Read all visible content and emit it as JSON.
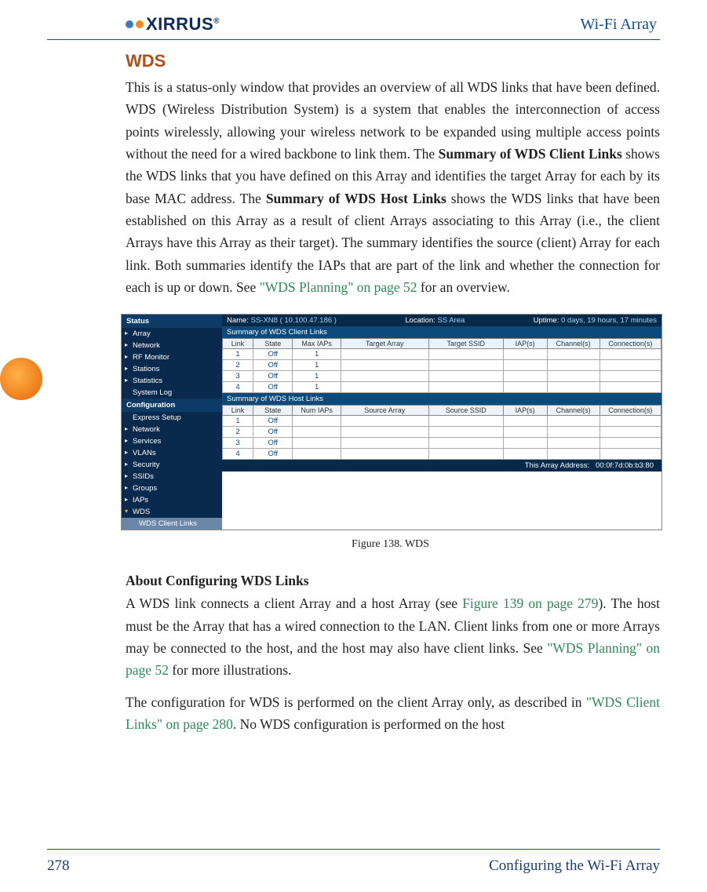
{
  "header": {
    "logo_text": "XIRRUS",
    "right_text": "Wi-Fi Array",
    "logo_dot1_color": "#3a7bbd",
    "logo_dot2_color": "#f08a1d"
  },
  "side_tab_color": "#ee7b1a",
  "section": {
    "title": "WDS",
    "para1_pre": "This is a status-only window that provides an overview of all WDS links that have been defined. WDS (Wireless Distribution System) is a system that enables the interconnection of access points wirelessly, allowing your wireless network to be expanded using multiple access points without the need for a wired backbone to link them. The ",
    "para1_bold1": "Summary of WDS Client Links",
    "para1_mid1": " shows the WDS links that you have defined on this Array and identifies the target Array for each by its base MAC address. The ",
    "para1_bold2": "Summary of WDS Host Links",
    "para1_mid2": " shows the WDS links that have been established on this Array as a result of client Arrays associating to this Array (i.e., the client Arrays have this Array as their target). The summary identifies the source (client) Array for each link. Both summaries identify the IAPs that are part of the link and whether the connection for each is up or down. See ",
    "para1_link": "\"WDS Planning\" on page 52",
    "para1_tail": " for an overview."
  },
  "figure": {
    "nav": {
      "status_head": "Status",
      "items1": [
        "Array",
        "Network",
        "RF Monitor",
        "Stations",
        "Statistics",
        "System Log"
      ],
      "config_head": "Configuration",
      "items2": [
        "Express Setup",
        "Network",
        "Services",
        "VLANs",
        "Security",
        "SSIDs",
        "Groups",
        "IAPs",
        "WDS",
        "WDS Client Links"
      ]
    },
    "infobar": {
      "name_label": "Name:",
      "name_val": "SS-XN8   ( 10.100.47.186 )",
      "loc_label": "Location:",
      "loc_val": "SS Area",
      "up_label": "Uptime:",
      "up_val": "0 days, 19 hours, 17 minutes"
    },
    "client_head": "Summary of WDS Client Links",
    "client_cols": [
      "Link",
      "State",
      "Max IAPs",
      "Target Array",
      "Target SSID",
      "IAP(s)",
      "Channel(s)",
      "Connection(s)"
    ],
    "client_rows": [
      [
        "1",
        "Off",
        "1",
        "",
        "",
        "",
        "",
        ""
      ],
      [
        "2",
        "Off",
        "1",
        "",
        "",
        "",
        "",
        ""
      ],
      [
        "3",
        "Off",
        "1",
        "",
        "",
        "",
        "",
        ""
      ],
      [
        "4",
        "Off",
        "1",
        "",
        "",
        "",
        "",
        ""
      ]
    ],
    "host_head": "Summary of WDS Host Links",
    "host_cols": [
      "Link",
      "State",
      "Num IAPs",
      "Source Array",
      "Source SSID",
      "IAP(s)",
      "Channel(s)",
      "Connection(s)"
    ],
    "host_rows": [
      [
        "1",
        "Off",
        "",
        "",
        "",
        "",
        "",
        ""
      ],
      [
        "2",
        "Off",
        "",
        "",
        "",
        "",
        "",
        ""
      ],
      [
        "3",
        "Off",
        "",
        "",
        "",
        "",
        "",
        ""
      ],
      [
        "4",
        "Off",
        "",
        "",
        "",
        "",
        "",
        ""
      ]
    ],
    "footer_label": "This Array Address:",
    "footer_val": "00:0f:7d:0b:b3:80",
    "caption": "Figure 138. WDS"
  },
  "subsection": {
    "title": "About Configuring WDS Links",
    "p1_pre": "A WDS link connects a client Array and a host Array (see ",
    "p1_link": "Figure 139 on page 279",
    "p1_mid": "). The host must be the Array that has a wired connection to the LAN. Client links from one or more Arrays may be connected to the host, and the host may also have client links. See ",
    "p1_link2": "\"WDS Planning\" on page 52",
    "p1_tail": " for more illustrations.",
    "p2_pre": "The configuration for WDS is performed on the client Array only, as described in ",
    "p2_link": "\"WDS Client Links\" on page 280",
    "p2_tail": ". No WDS configuration is performed on the host"
  },
  "footer": {
    "page": "278",
    "title": "Configuring the Wi-Fi Array"
  }
}
